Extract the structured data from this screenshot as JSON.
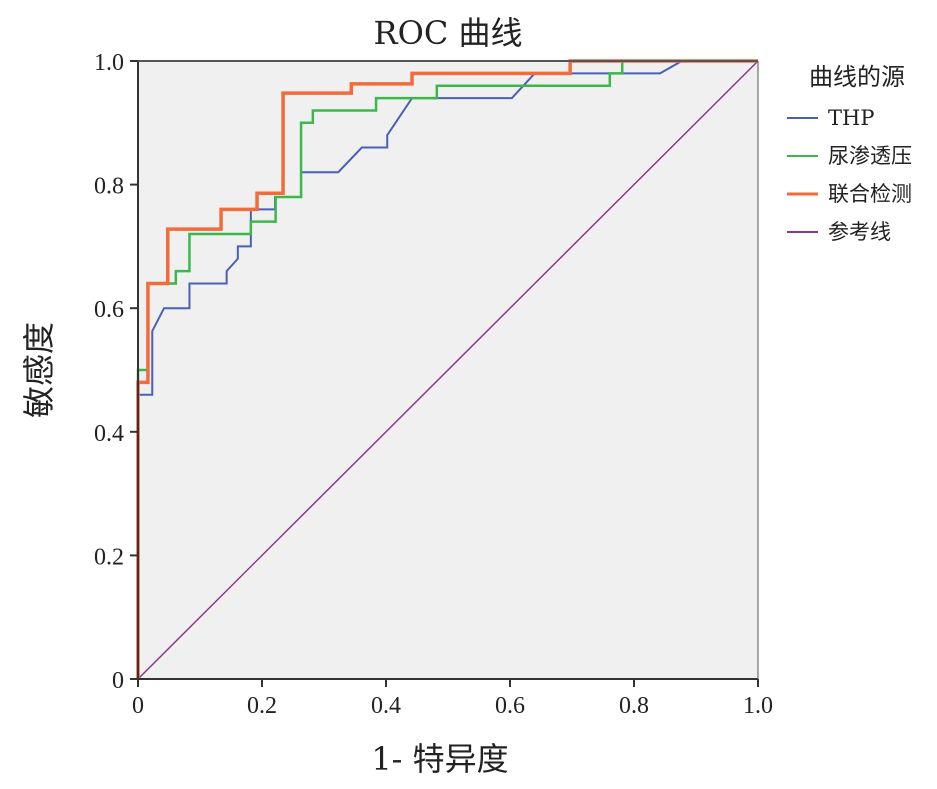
{
  "chart_data": {
    "type": "line",
    "title": "ROC 曲线",
    "xlabel": "1- 特异度",
    "ylabel": "敏感度",
    "xlim": [
      0,
      1
    ],
    "ylim": [
      0,
      1
    ],
    "x_ticks": [
      "0",
      "0.2",
      "0.4",
      "0.6",
      "0.8",
      "1.0"
    ],
    "y_ticks": [
      "0",
      "0.2",
      "0.4",
      "0.6",
      "0.8",
      "1.0"
    ],
    "grid": false,
    "legend_title": "曲线的源",
    "legend_placement": "right",
    "series": [
      {
        "name": "THP",
        "color": "#4a5fb8",
        "points": [
          [
            0,
            0
          ],
          [
            0,
            0.46
          ],
          [
            0.023,
            0.46
          ],
          [
            0.023,
            0.563
          ],
          [
            0.042,
            0.6
          ],
          [
            0.083,
            0.6
          ],
          [
            0.083,
            0.64
          ],
          [
            0.143,
            0.64
          ],
          [
            0.143,
            0.66
          ],
          [
            0.161,
            0.68
          ],
          [
            0.161,
            0.7
          ],
          [
            0.182,
            0.7
          ],
          [
            0.182,
            0.76
          ],
          [
            0.221,
            0.76
          ],
          [
            0.221,
            0.78
          ],
          [
            0.263,
            0.78
          ],
          [
            0.263,
            0.82
          ],
          [
            0.323,
            0.82
          ],
          [
            0.361,
            0.86
          ],
          [
            0.402,
            0.86
          ],
          [
            0.402,
            0.88
          ],
          [
            0.442,
            0.94
          ],
          [
            0.603,
            0.94
          ],
          [
            0.64,
            0.98
          ],
          [
            0.842,
            0.98
          ],
          [
            0.877,
            1.0
          ],
          [
            1.0,
            1.0
          ]
        ]
      },
      {
        "name": "尿渗透压",
        "color": "#3cb84a",
        "points": [
          [
            0,
            0
          ],
          [
            0,
            0.5
          ],
          [
            0.016,
            0.5
          ],
          [
            0.016,
            0.64
          ],
          [
            0.061,
            0.64
          ],
          [
            0.061,
            0.66
          ],
          [
            0.083,
            0.66
          ],
          [
            0.083,
            0.72
          ],
          [
            0.182,
            0.72
          ],
          [
            0.182,
            0.74
          ],
          [
            0.222,
            0.74
          ],
          [
            0.222,
            0.78
          ],
          [
            0.263,
            0.78
          ],
          [
            0.263,
            0.9
          ],
          [
            0.282,
            0.9
          ],
          [
            0.282,
            0.92
          ],
          [
            0.384,
            0.92
          ],
          [
            0.384,
            0.94
          ],
          [
            0.482,
            0.94
          ],
          [
            0.482,
            0.96
          ],
          [
            0.761,
            0.96
          ],
          [
            0.761,
            0.98
          ],
          [
            0.781,
            0.98
          ],
          [
            0.781,
            1.0
          ],
          [
            1.0,
            1.0
          ]
        ]
      },
      {
        "name": "联合检测",
        "color": "#f26b3a",
        "points": [
          [
            0,
            0
          ],
          [
            0,
            0.48
          ],
          [
            0.016,
            0.48
          ],
          [
            0.016,
            0.64
          ],
          [
            0.048,
            0.64
          ],
          [
            0.048,
            0.728
          ],
          [
            0.134,
            0.728
          ],
          [
            0.134,
            0.76
          ],
          [
            0.192,
            0.76
          ],
          [
            0.192,
            0.786
          ],
          [
            0.234,
            0.786
          ],
          [
            0.234,
            0.948
          ],
          [
            0.344,
            0.948
          ],
          [
            0.344,
            0.963
          ],
          [
            0.442,
            0.963
          ],
          [
            0.442,
            0.98
          ],
          [
            0.697,
            0.98
          ],
          [
            0.697,
            1.0
          ],
          [
            1.0,
            1.0
          ]
        ]
      },
      {
        "name": "参考线",
        "color": "#8b3a8b",
        "points": [
          [
            0,
            0
          ],
          [
            1,
            1
          ]
        ]
      }
    ]
  }
}
